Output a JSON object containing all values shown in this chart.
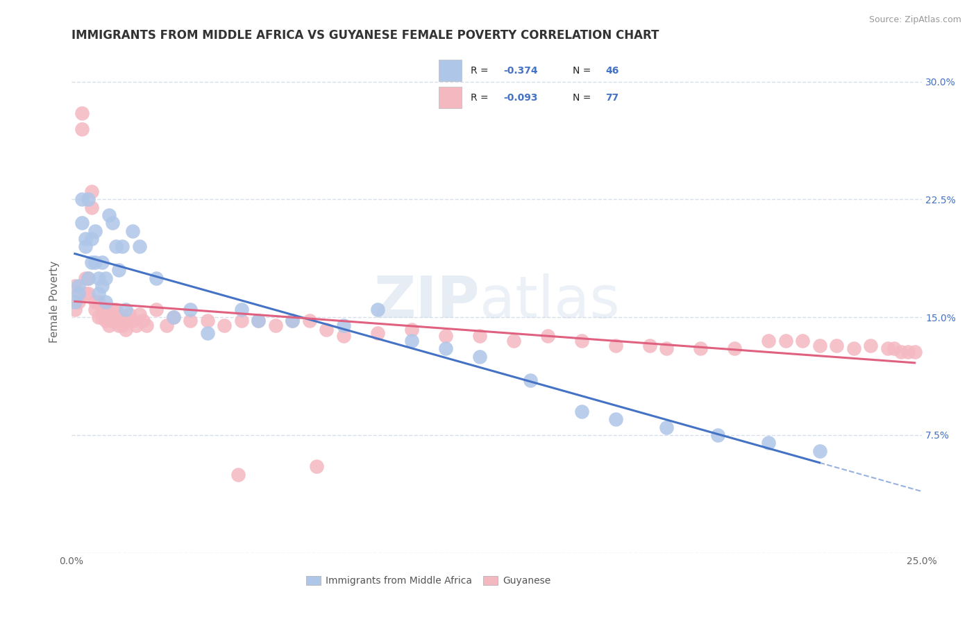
{
  "title": "IMMIGRANTS FROM MIDDLE AFRICA VS GUYANESE FEMALE POVERTY CORRELATION CHART",
  "source": "Source: ZipAtlas.com",
  "ylabel": "Female Poverty",
  "xlim": [
    0.0,
    0.25
  ],
  "ylim": [
    0.0,
    0.32
  ],
  "legend_labels": [
    "Immigrants from Middle Africa",
    "Guyanese"
  ],
  "R_blue": -0.374,
  "N_blue": 46,
  "R_pink": -0.093,
  "N_pink": 77,
  "blue_color": "#aec6e8",
  "pink_color": "#f4b8c1",
  "blue_line_color": "#4472c4",
  "pink_line_color": "#e06080",
  "background_color": "#ffffff",
  "grid_color": "#d4dce8",
  "blue_scatter_x": [
    0.001,
    0.002,
    0.002,
    0.003,
    0.003,
    0.004,
    0.004,
    0.005,
    0.005,
    0.006,
    0.006,
    0.007,
    0.007,
    0.008,
    0.008,
    0.009,
    0.009,
    0.01,
    0.01,
    0.011,
    0.012,
    0.013,
    0.014,
    0.015,
    0.016,
    0.018,
    0.02,
    0.025,
    0.03,
    0.035,
    0.04,
    0.05,
    0.055,
    0.065,
    0.08,
    0.09,
    0.1,
    0.11,
    0.12,
    0.135,
    0.15,
    0.16,
    0.175,
    0.19,
    0.205,
    0.22
  ],
  "blue_scatter_y": [
    0.16,
    0.165,
    0.17,
    0.225,
    0.21,
    0.2,
    0.195,
    0.225,
    0.175,
    0.2,
    0.185,
    0.205,
    0.185,
    0.175,
    0.165,
    0.185,
    0.17,
    0.175,
    0.16,
    0.215,
    0.21,
    0.195,
    0.18,
    0.195,
    0.155,
    0.205,
    0.195,
    0.175,
    0.15,
    0.155,
    0.14,
    0.155,
    0.148,
    0.148,
    0.145,
    0.155,
    0.135,
    0.13,
    0.125,
    0.11,
    0.09,
    0.085,
    0.08,
    0.075,
    0.07,
    0.065
  ],
  "pink_scatter_x": [
    0.001,
    0.001,
    0.002,
    0.002,
    0.003,
    0.003,
    0.004,
    0.004,
    0.005,
    0.005,
    0.006,
    0.006,
    0.007,
    0.007,
    0.008,
    0.008,
    0.009,
    0.009,
    0.01,
    0.01,
    0.011,
    0.011,
    0.012,
    0.012,
    0.013,
    0.013,
    0.014,
    0.014,
    0.015,
    0.015,
    0.016,
    0.016,
    0.017,
    0.018,
    0.019,
    0.02,
    0.021,
    0.022,
    0.025,
    0.028,
    0.03,
    0.035,
    0.04,
    0.045,
    0.05,
    0.055,
    0.06,
    0.065,
    0.07,
    0.075,
    0.08,
    0.09,
    0.1,
    0.11,
    0.12,
    0.13,
    0.14,
    0.15,
    0.16,
    0.17,
    0.175,
    0.185,
    0.195,
    0.205,
    0.21,
    0.215,
    0.22,
    0.225,
    0.23,
    0.235,
    0.24,
    0.242,
    0.244,
    0.246,
    0.248,
    0.049,
    0.072
  ],
  "pink_scatter_y": [
    0.155,
    0.17,
    0.165,
    0.16,
    0.28,
    0.27,
    0.165,
    0.175,
    0.175,
    0.165,
    0.22,
    0.23,
    0.155,
    0.16,
    0.15,
    0.16,
    0.15,
    0.155,
    0.148,
    0.155,
    0.145,
    0.155,
    0.155,
    0.148,
    0.155,
    0.148,
    0.148,
    0.145,
    0.15,
    0.145,
    0.148,
    0.142,
    0.152,
    0.148,
    0.145,
    0.152,
    0.148,
    0.145,
    0.155,
    0.145,
    0.15,
    0.148,
    0.148,
    0.145,
    0.148,
    0.148,
    0.145,
    0.148,
    0.148,
    0.142,
    0.138,
    0.14,
    0.142,
    0.138,
    0.138,
    0.135,
    0.138,
    0.135,
    0.132,
    0.132,
    0.13,
    0.13,
    0.13,
    0.135,
    0.135,
    0.135,
    0.132,
    0.132,
    0.13,
    0.132,
    0.13,
    0.13,
    0.128,
    0.128,
    0.128,
    0.05,
    0.055
  ]
}
